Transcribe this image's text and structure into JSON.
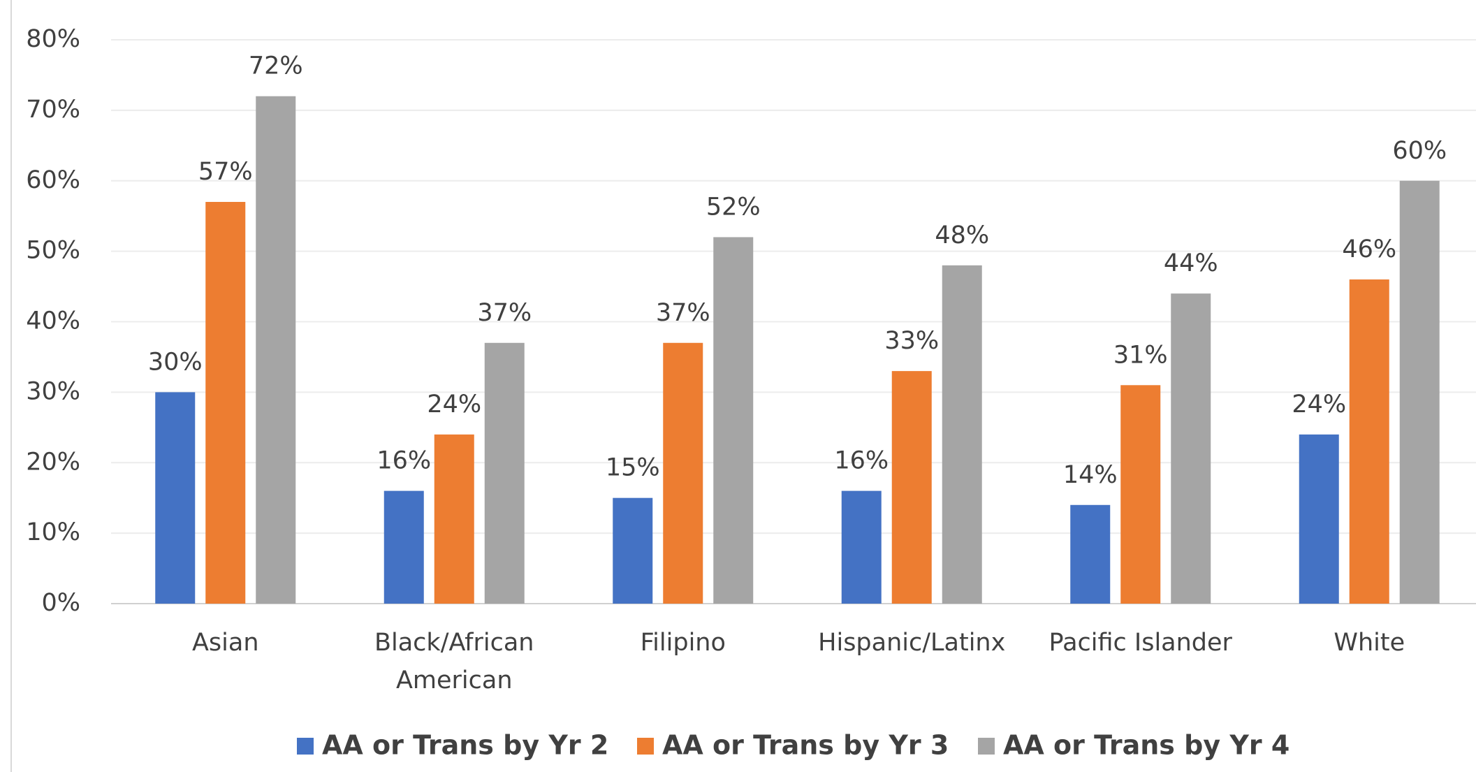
{
  "chart_data": {
    "type": "bar",
    "categories": [
      "Asian",
      "Black/African American",
      "Filipino",
      "Hispanic/Latinx",
      "Pacific Islander",
      "White"
    ],
    "series": [
      {
        "name": "AA or Trans by Yr 2",
        "color": "#4472c4",
        "values": [
          30,
          16,
          15,
          16,
          14,
          24
        ],
        "value_labels": [
          "30%",
          "16%",
          "15%",
          "16%",
          "14%",
          "24%"
        ]
      },
      {
        "name": "AA or Trans by Yr 3",
        "color": "#ed7d31",
        "values": [
          57,
          24,
          37,
          33,
          31,
          46
        ],
        "value_labels": [
          "57%",
          "24%",
          "37%",
          "33%",
          "31%",
          "46%"
        ]
      },
      {
        "name": "AA or Trans by Yr 4",
        "color": "#a5a5a5",
        "values": [
          72,
          37,
          52,
          48,
          44,
          60
        ],
        "value_labels": [
          "72%",
          "37%",
          "52%",
          "48%",
          "44%",
          "60%"
        ]
      }
    ],
    "ylim": [
      0,
      80
    ],
    "yticks": [
      {
        "value": 0,
        "label": "0%"
      },
      {
        "value": 10,
        "label": "10%"
      },
      {
        "value": 20,
        "label": "20%"
      },
      {
        "value": 30,
        "label": "30%"
      },
      {
        "value": 40,
        "label": "40%"
      },
      {
        "value": 50,
        "label": "50%"
      },
      {
        "value": 60,
        "label": "60%"
      },
      {
        "value": 70,
        "label": "70%"
      },
      {
        "value": 80,
        "label": "80%"
      }
    ],
    "grid": true,
    "legend": "bottom"
  }
}
